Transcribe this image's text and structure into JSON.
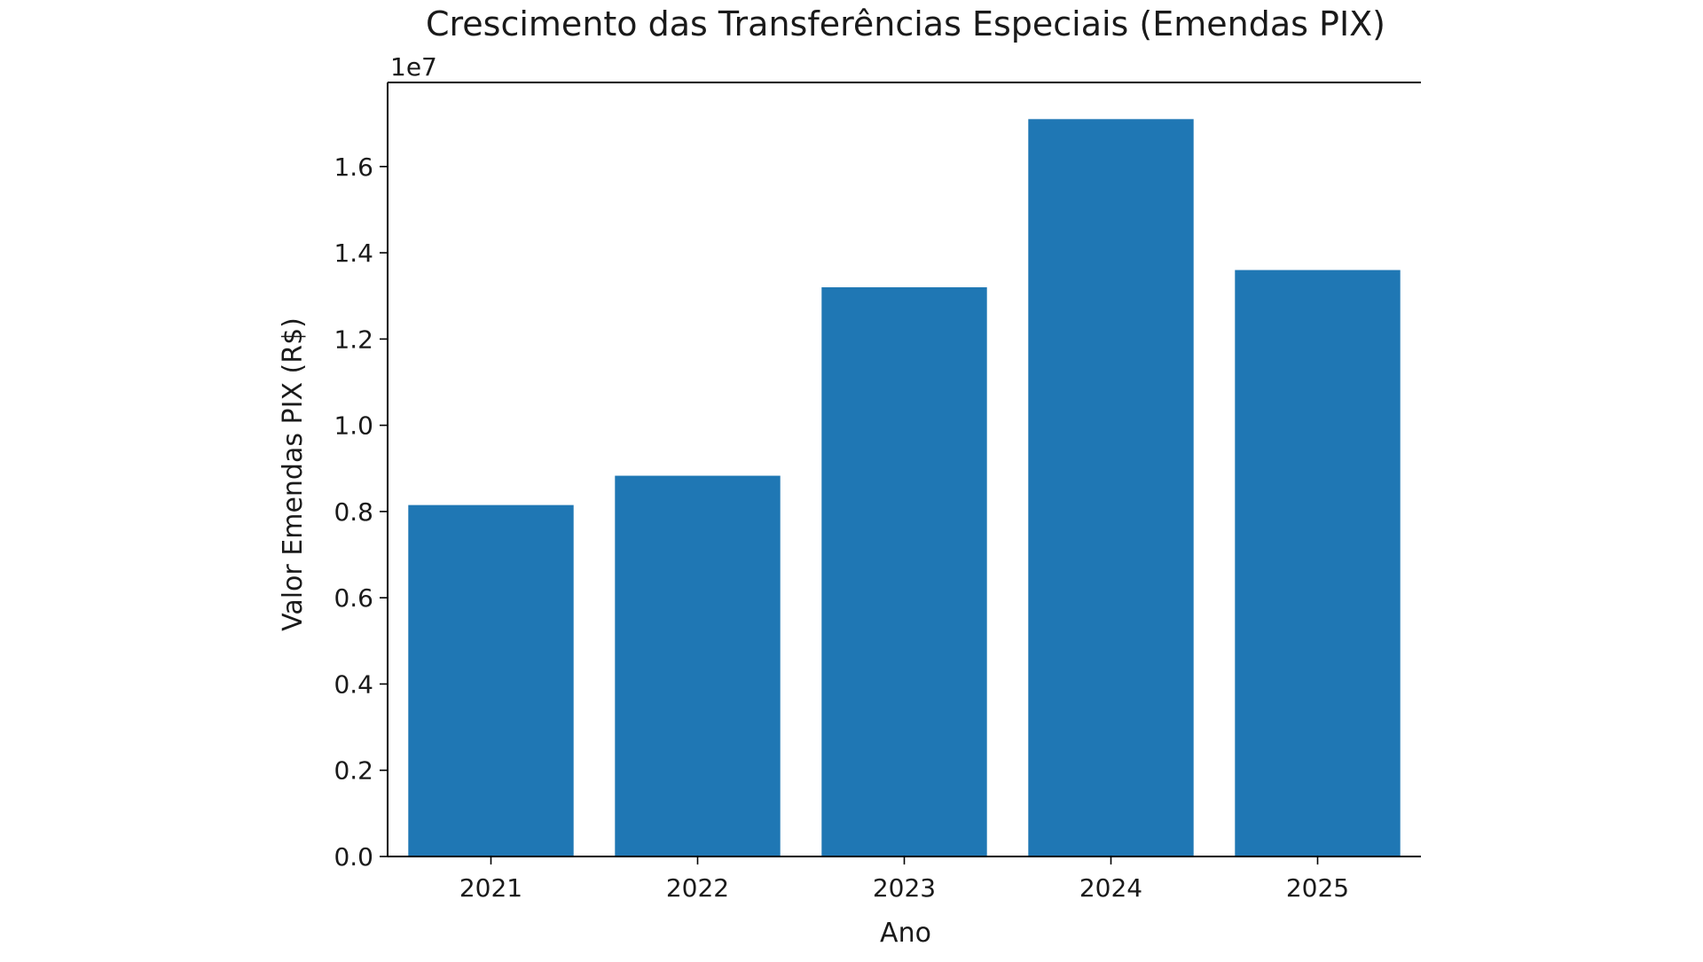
{
  "chart_data": {
    "type": "bar",
    "title": "Crescimento das Transferências Especiais (Emendas PIX)",
    "xlabel": "Ano",
    "ylabel": "Valor Emendas PIX (R$)",
    "offset_label": "1e7",
    "categories": [
      "2021",
      "2022",
      "2023",
      "2024",
      "2025"
    ],
    "values": [
      8150000,
      8830000,
      13200000,
      17100000,
      13600000
    ],
    "ylim": [
      0,
      17950000
    ],
    "yticks": [
      0,
      2000000,
      4000000,
      6000000,
      8000000,
      10000000,
      12000000,
      14000000,
      16000000
    ],
    "ytick_labels": [
      "0.0",
      "0.2",
      "0.4",
      "0.6",
      "0.8",
      "1.0",
      "1.2",
      "1.4",
      "1.6"
    ],
    "bar_color": "#1f77b4",
    "grid": false,
    "legend": "none"
  }
}
